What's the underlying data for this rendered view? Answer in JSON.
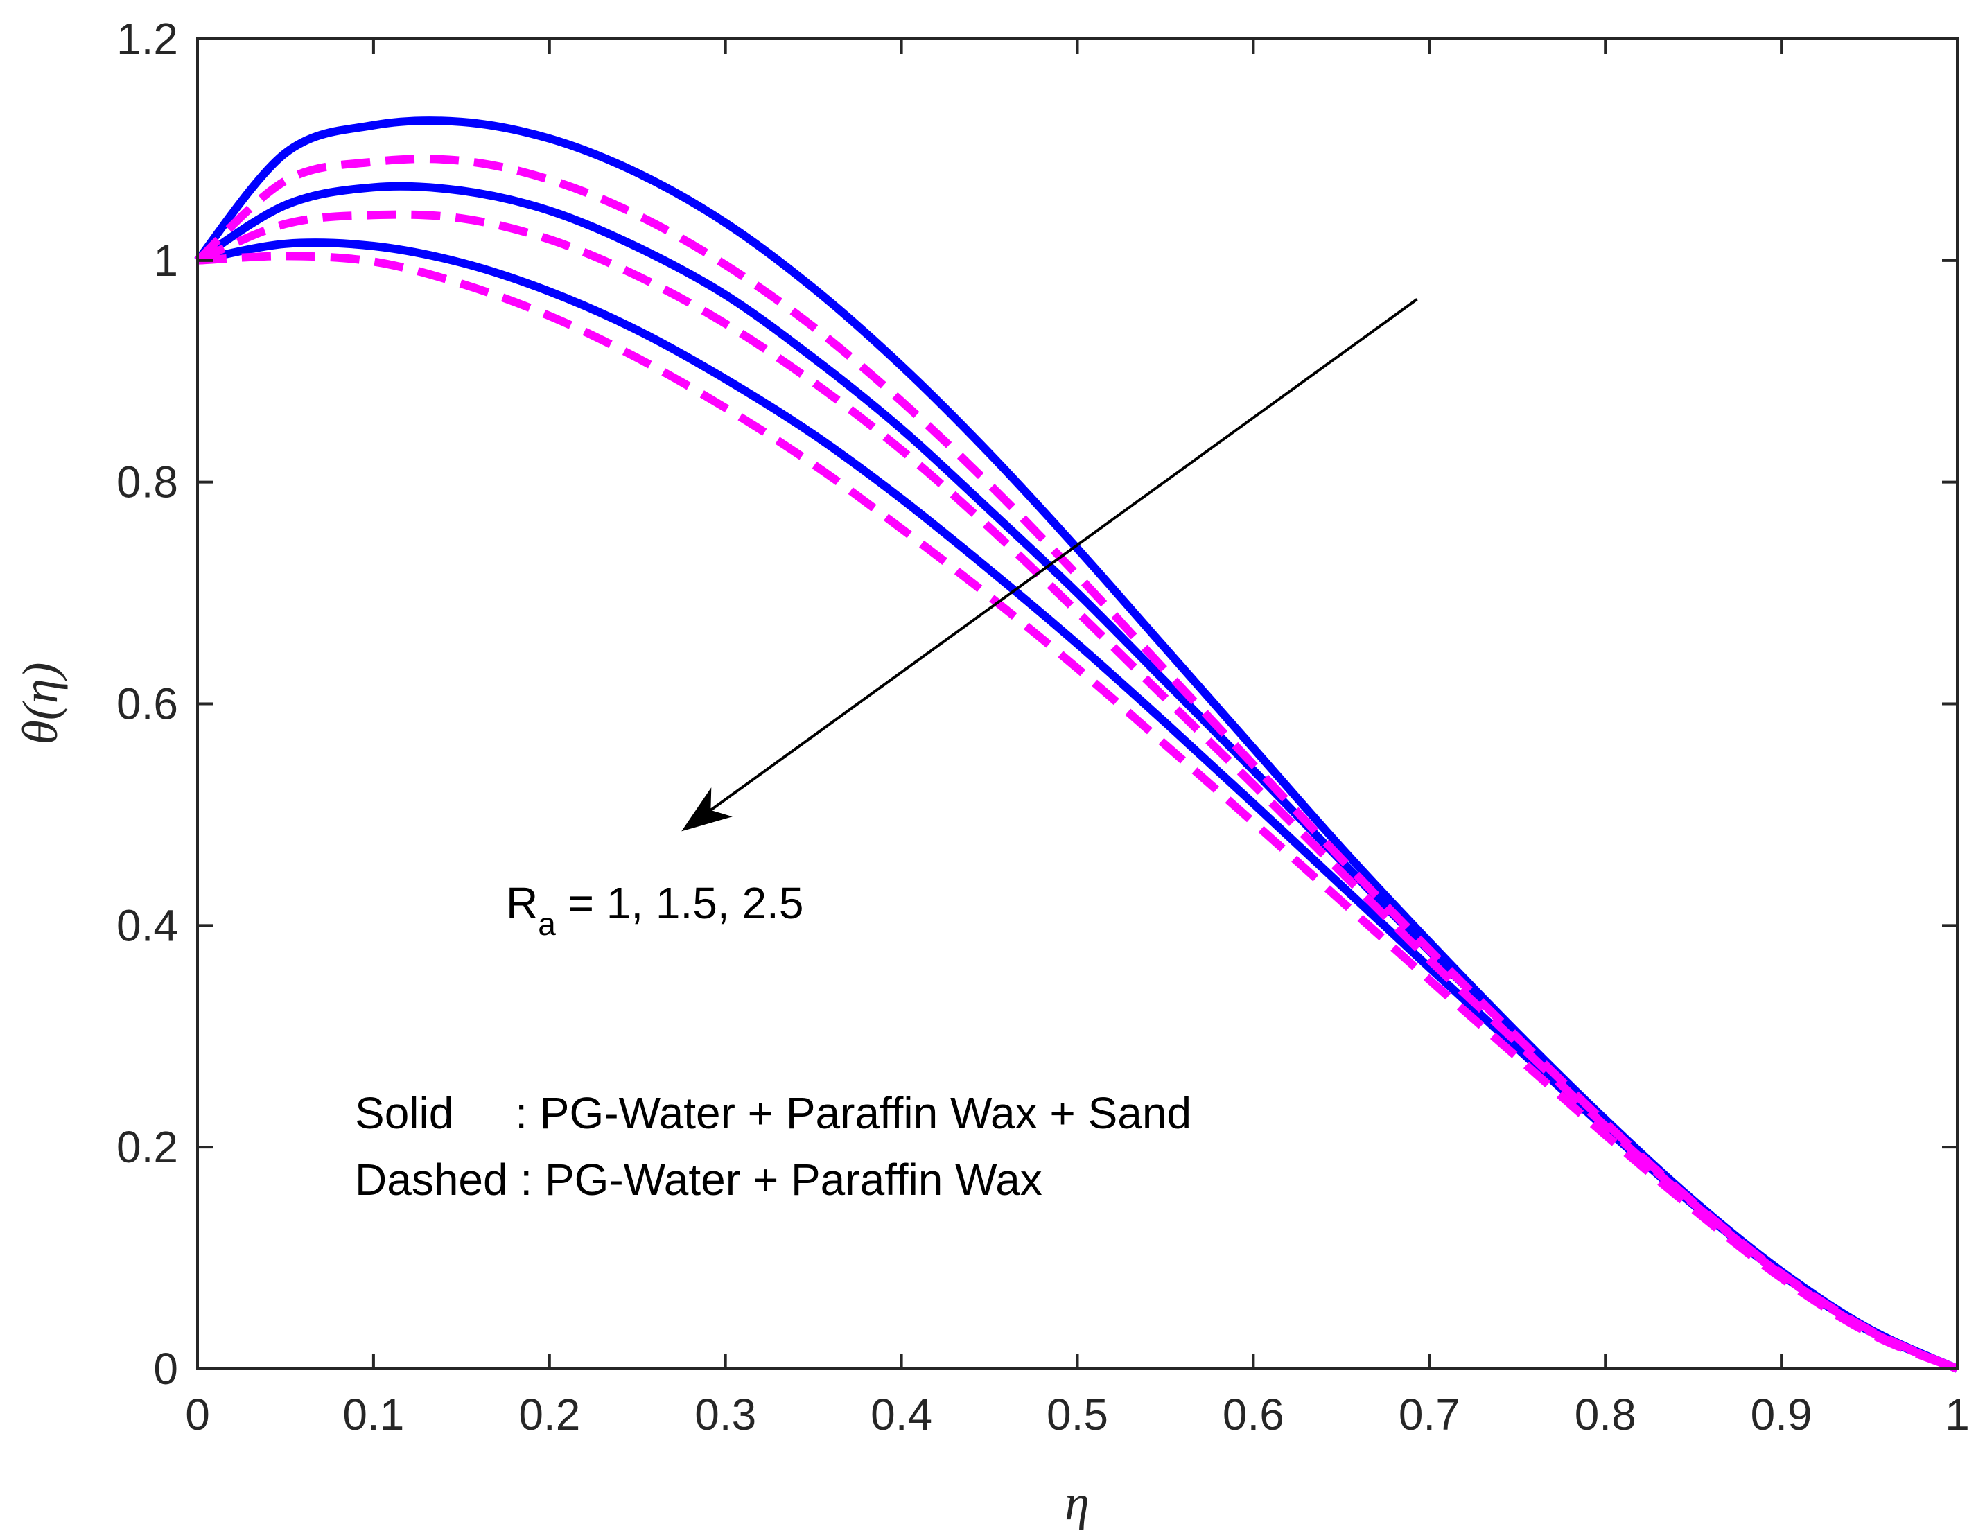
{
  "chart_data": {
    "type": "line",
    "title": "",
    "xlabel": "η",
    "ylabel": "θ(η)",
    "xlim": [
      0,
      1
    ],
    "ylim": [
      0,
      1.2
    ],
    "xticks": [
      0,
      0.1,
      0.2,
      0.3,
      0.4,
      0.5,
      0.6,
      0.7,
      0.8,
      0.9,
      1
    ],
    "xtick_labels": [
      "0",
      "0.1",
      "0.2",
      "0.3",
      "0.4",
      "0.5",
      "0.6",
      "0.7",
      "0.8",
      "0.9",
      "1"
    ],
    "yticks": [
      0,
      0.2,
      0.4,
      0.6,
      0.8,
      1,
      1.2
    ],
    "ytick_labels": [
      "0",
      "0.2",
      "0.4",
      "0.6",
      "0.8",
      "1",
      "1.2"
    ],
    "x": [
      0,
      0.05,
      0.1,
      0.15,
      0.2,
      0.25,
      0.3,
      0.35,
      0.4,
      0.45,
      0.5,
      0.55,
      0.6,
      0.65,
      0.7,
      0.75,
      0.8,
      0.85,
      0.9,
      0.95,
      1
    ],
    "series": [
      {
        "name": "Solid R_a=1",
        "style": "solid",
        "color": "#0000ff",
        "values": [
          1.0,
          1.097,
          1.122,
          1.125,
          1.11,
          1.079,
          1.034,
          0.975,
          0.905,
          0.826,
          0.74,
          0.65,
          0.56,
          0.47,
          0.385,
          0.303,
          0.225,
          0.152,
          0.088,
          0.036,
          0.0
        ]
      },
      {
        "name": "Solid R_a=1.5",
        "style": "solid",
        "color": "#0000ff",
        "values": [
          1.0,
          1.05,
          1.066,
          1.063,
          1.045,
          1.012,
          0.969,
          0.912,
          0.848,
          0.775,
          0.7,
          0.62,
          0.54,
          0.458,
          0.377,
          0.3,
          0.224,
          0.151,
          0.086,
          0.035,
          0.0
        ]
      },
      {
        "name": "Solid R_a=2.5",
        "style": "solid",
        "color": "#0000ff",
        "values": [
          1.0,
          1.015,
          1.013,
          0.998,
          0.972,
          0.937,
          0.893,
          0.843,
          0.785,
          0.721,
          0.654,
          0.583,
          0.51,
          0.436,
          0.362,
          0.289,
          0.217,
          0.148,
          0.085,
          0.034,
          0.0
        ]
      },
      {
        "name": "Dashed R_a=1",
        "style": "dashed",
        "color": "#ff00ff",
        "values": [
          1.0,
          1.072,
          1.089,
          1.09,
          1.073,
          1.041,
          0.996,
          0.94,
          0.873,
          0.798,
          0.716,
          0.63,
          0.545,
          0.46,
          0.378,
          0.299,
          0.222,
          0.15,
          0.086,
          0.035,
          0.0
        ]
      },
      {
        "name": "Dashed R_a=1.5",
        "style": "dashed",
        "color": "#ff00ff",
        "values": [
          1.0,
          1.033,
          1.041,
          1.038,
          1.019,
          0.986,
          0.943,
          0.89,
          0.829,
          0.759,
          0.683,
          0.605,
          0.527,
          0.448,
          0.369,
          0.294,
          0.219,
          0.149,
          0.085,
          0.034,
          0.0
        ]
      },
      {
        "name": "Dashed R_a=2.5",
        "style": "dashed",
        "color": "#ff00ff",
        "values": [
          1.0,
          1.004,
          0.999,
          0.979,
          0.95,
          0.912,
          0.867,
          0.816,
          0.758,
          0.697,
          0.632,
          0.563,
          0.493,
          0.422,
          0.351,
          0.281,
          0.211,
          0.144,
          0.082,
          0.032,
          0.0
        ]
      }
    ],
    "annotations": {
      "arrow_label_base": "R",
      "arrow_label_sub": "a",
      "arrow_label_rest": " = 1, 1.5, 2.5",
      "legend_line1": "Solid     : PG-Water + Paraffin Wax + Sand",
      "legend_line2": "Dashed : PG-Water + Paraffin Wax"
    },
    "arrow": {
      "from": [
        0.693,
        0.965
      ],
      "to": [
        0.275,
        0.485
      ]
    }
  }
}
